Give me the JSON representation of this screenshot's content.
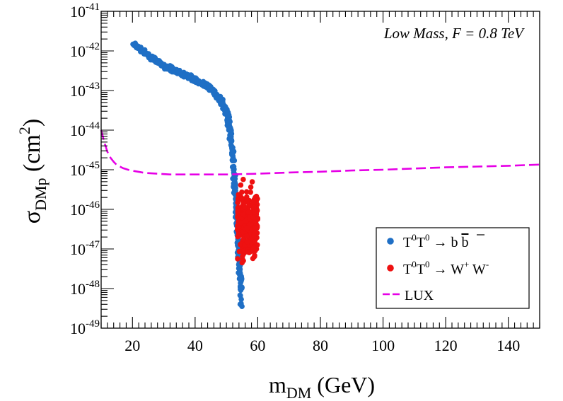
{
  "chart_data": {
    "type": "scatter",
    "annotation": "Low Mass, F = 0.8 TeV",
    "xlabel": {
      "main": "m",
      "sub": "DM",
      "rest": " (GeV)"
    },
    "ylabel": {
      "main": "σ",
      "sub": "DMp",
      "rest": " (cm",
      "sup": "2",
      "close": ")"
    },
    "xlim": [
      10,
      150
    ],
    "ylim_log10": [
      -49,
      -41
    ],
    "yscale": "log",
    "x_ticks": [
      20,
      40,
      60,
      80,
      100,
      120,
      140
    ],
    "x_tick_labels": [
      "20",
      "40",
      "60",
      "80",
      "100",
      "120",
      "140"
    ],
    "y_ticks": [
      -49,
      -48,
      -47,
      -46,
      -45,
      -44,
      -43,
      -42,
      -41
    ],
    "y_tick_labels": [
      {
        "base": "10",
        "exp": "-49"
      },
      {
        "base": "10",
        "exp": "-48"
      },
      {
        "base": "10",
        "exp": "-47"
      },
      {
        "base": "10",
        "exp": "-46"
      },
      {
        "base": "10",
        "exp": "-45"
      },
      {
        "base": "10",
        "exp": "-44"
      },
      {
        "base": "10",
        "exp": "-43"
      },
      {
        "base": "10",
        "exp": "-42"
      },
      {
        "base": "10",
        "exp": "-41"
      }
    ],
    "legend_position": "bottom-right",
    "series": [
      {
        "name": "T0T0 → b b̄",
        "legend": {
          "a": "T",
          "a_sup": "0",
          "b": "T",
          "b_sup": "0",
          "arrow": " → b ",
          "c": "b"
        },
        "color": "#1f6fc5",
        "kind": "points",
        "band": [
          [
            20.5,
            -41.85,
            0.06
          ],
          [
            22,
            -41.93,
            0.07
          ],
          [
            24,
            -42.05,
            0.08
          ],
          [
            26,
            -42.17,
            0.08
          ],
          [
            28,
            -42.27,
            0.08
          ],
          [
            30,
            -42.37,
            0.08
          ],
          [
            32,
            -42.45,
            0.08
          ],
          [
            34,
            -42.52,
            0.08
          ],
          [
            36,
            -42.59,
            0.08
          ],
          [
            38,
            -42.66,
            0.08
          ],
          [
            40,
            -42.73,
            0.08
          ],
          [
            42,
            -42.82,
            0.08
          ],
          [
            44,
            -42.9,
            0.08
          ],
          [
            46,
            -43.02,
            0.1
          ],
          [
            48,
            -43.22,
            0.12
          ],
          [
            49,
            -43.35,
            0.12
          ],
          [
            50,
            -43.55,
            0.15
          ],
          [
            51,
            -43.9,
            0.2
          ],
          [
            51.7,
            -44.35,
            0.3
          ],
          [
            52.3,
            -44.9,
            0.4
          ],
          [
            52.8,
            -45.5,
            0.5
          ],
          [
            53.3,
            -46.2,
            0.6
          ],
          [
            53.8,
            -46.9,
            0.6
          ],
          [
            54.3,
            -47.6,
            0.6
          ],
          [
            54.8,
            -48.2,
            0.5
          ]
        ],
        "point_count": 620
      },
      {
        "name": "T0T0 → W+ W-",
        "legend": {
          "a": "T",
          "a_sup": "0",
          "b": "T",
          "b_sup": "0",
          "arrow": " → W",
          "w1_sup": "+",
          "w2": " W",
          "w2_sup": "-"
        },
        "color": "#ee1111",
        "kind": "points",
        "x_range": [
          53.5,
          60
        ],
        "y_center_log10": -46.35,
        "y_spread_log10": 0.75,
        "point_count": 300
      },
      {
        "name": "LUX",
        "color": "#e600e6",
        "kind": "dashed-line",
        "x": [
          10,
          11,
          12,
          13,
          14,
          15,
          17,
          19,
          21,
          24,
          28,
          32,
          36,
          40,
          50,
          60,
          70,
          80,
          90,
          100,
          110,
          120,
          130,
          140,
          150
        ],
        "y_log10": [
          -44.0,
          -44.3,
          -44.55,
          -44.7,
          -44.8,
          -44.88,
          -44.96,
          -45.01,
          -45.04,
          -45.08,
          -45.1,
          -45.12,
          -45.12,
          -45.12,
          -45.12,
          -45.1,
          -45.07,
          -45.05,
          -45.02,
          -45.0,
          -44.97,
          -44.94,
          -44.92,
          -44.9,
          -44.87
        ]
      }
    ]
  }
}
